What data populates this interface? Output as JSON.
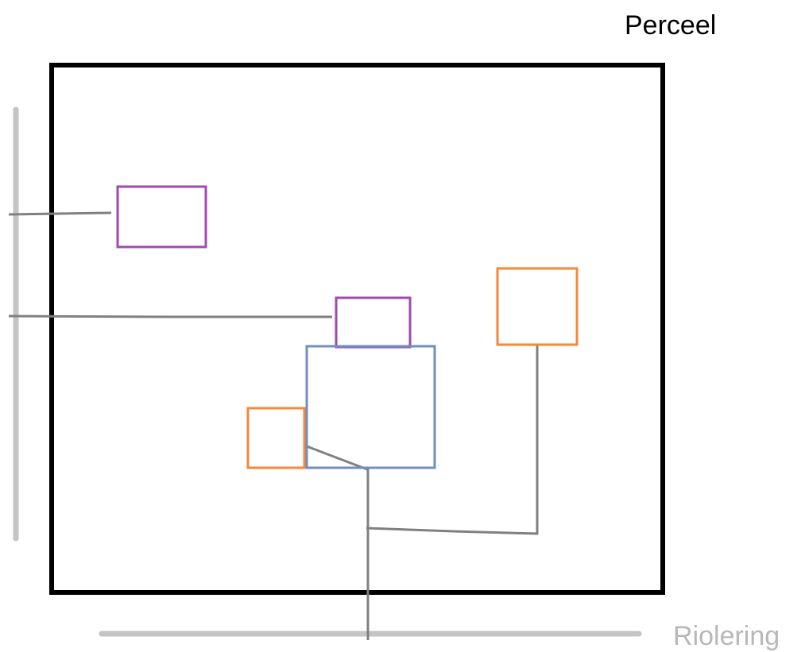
{
  "labels": {
    "parcel": "Perceel",
    "sewer": "Riolering"
  },
  "colors": {
    "parcel_border": "#000000",
    "purple_box": "#a04ab0",
    "orange_box": "#f5883a",
    "blue_box": "#6f8fbd",
    "pipe": "#808080",
    "sewer_line": "#c4c4c4",
    "sewer_label": "#b8b8b8",
    "parcel_label": "#000000"
  }
}
